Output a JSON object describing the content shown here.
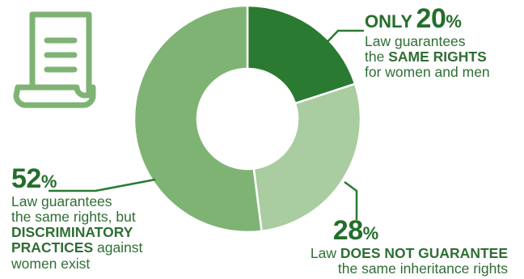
{
  "chart_data": {
    "type": "pie",
    "categories": [
      "Law guarantees the same rights for women and men",
      "Law does not guarantee the same inheritance rights",
      "Law guarantees the same rights, but discriminatory practices against women exist"
    ],
    "values": [
      20,
      28,
      52
    ],
    "unit": "%",
    "donut": true,
    "colors": [
      "#2a7a31",
      "#a9ccA0",
      "#7eb374"
    ],
    "title": "",
    "xlabel": "",
    "ylabel": ""
  },
  "labels": {
    "s20": {
      "only": "ONLY",
      "value": "20",
      "unit": "%",
      "line1": "Law guarantees",
      "line2_pre": "the ",
      "line2_bold": "SAME RIGHTS",
      "line3": "for women and men"
    },
    "s28": {
      "value": "28",
      "unit": "%",
      "line1_pre": "Law ",
      "line1_bold": "DOES NOT GUARANTEE",
      "line2": "the same inheritance rights"
    },
    "s52": {
      "value": "52",
      "unit": "%",
      "line1": "Law guarantees",
      "line2": "the same rights, but",
      "line3_bold": "DISCRIMINATORY",
      "line4_bold": "PRACTICES",
      "line4_post": " against",
      "line5": "women exist"
    }
  },
  "icon": {
    "name": "scroll-document-icon",
    "color": "#7eb374"
  }
}
